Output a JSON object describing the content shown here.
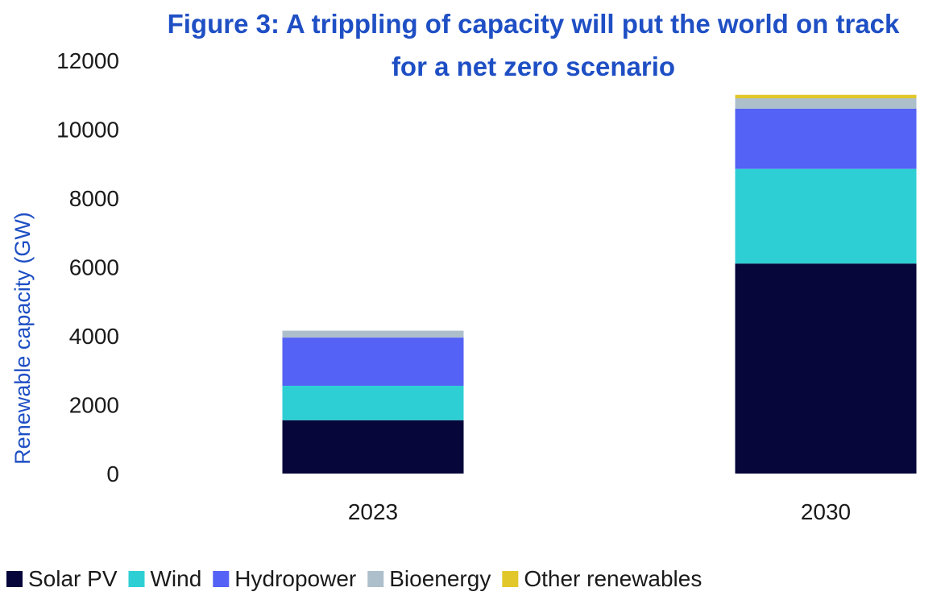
{
  "chart_data": {
    "type": "bar",
    "stacked": true,
    "title_lines": [
      "Figure 3: A trippling of capacity will put the world on track",
      "for a net zero scenario"
    ],
    "xlabel": "",
    "ylabel": "Renewable capacity (GW)",
    "ylim": [
      0,
      12000
    ],
    "yticks": [
      "12000",
      "10000",
      "8000",
      "6000",
      "4000",
      "2000",
      "0"
    ],
    "grid": false,
    "legend_position": "bottom",
    "categories": [
      "2023",
      "2030"
    ],
    "series": [
      {
        "name": "Solar PV",
        "color": "#06063a",
        "values": [
          1550,
          6100
        ]
      },
      {
        "name": "Wind",
        "color": "#2ecfd4",
        "values": [
          1000,
          2750
        ]
      },
      {
        "name": "Hydropower",
        "color": "#5462f5",
        "values": [
          1400,
          1750
        ]
      },
      {
        "name": "Bioenergy",
        "color": "#aebfcc",
        "values": [
          200,
          300
        ]
      },
      {
        "name": "Other renewables",
        "color": "#e2c72a",
        "values": [
          0,
          100
        ]
      }
    ],
    "colors": {
      "title": "#1f4fc4",
      "ylabel": "#1f4fc4"
    }
  }
}
